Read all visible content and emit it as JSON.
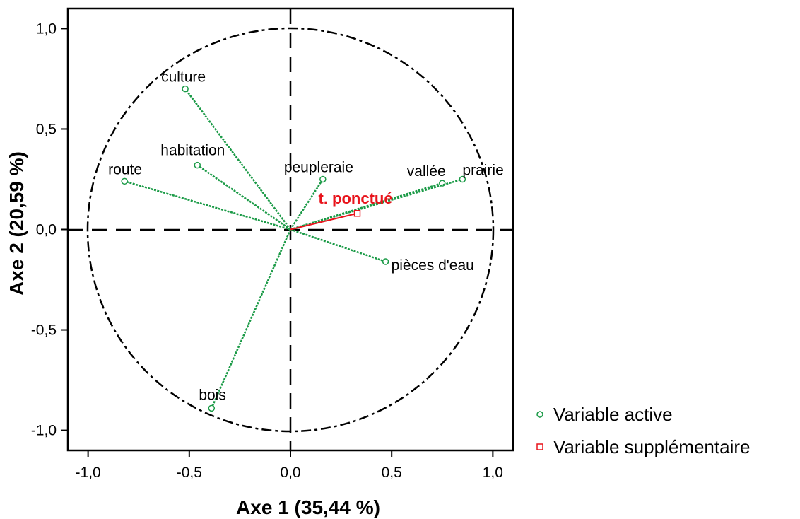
{
  "chart_data": {
    "type": "scatter",
    "subtype": "correlation circle",
    "xlabel": "Axe 1 (35,44 %)",
    "ylabel": "Axe 2 (20,59 %)",
    "xlim": [
      -1.1,
      1.1
    ],
    "ylim": [
      -1.1,
      1.1
    ],
    "x_ticks": [
      "-1,0",
      "-0,5",
      "0,0",
      "0,5",
      "1,0"
    ],
    "y_ticks": [
      "1,0",
      "0,5",
      "0,0",
      "-0,5",
      "-1,0"
    ],
    "x_tick_values": [
      -1.0,
      -0.5,
      0.0,
      0.5,
      1.0
    ],
    "y_tick_values": [
      1.0,
      0.5,
      0.0,
      -0.5,
      -1.0
    ],
    "grid": false,
    "legend_position": "right",
    "series": [
      {
        "name": "Variable active",
        "marker": "circle",
        "color": "#1a9a46",
        "points": [
          {
            "label": "culture",
            "x": -0.52,
            "y": 0.7
          },
          {
            "label": "habitation",
            "x": -0.46,
            "y": 0.32
          },
          {
            "label": "route",
            "x": -0.82,
            "y": 0.24
          },
          {
            "label": "peupleraie",
            "x": 0.16,
            "y": 0.25
          },
          {
            "label": "vallée",
            "x": 0.75,
            "y": 0.23
          },
          {
            "label": "prairie",
            "x": 0.85,
            "y": 0.25
          },
          {
            "label": "pièces d'eau",
            "x": 0.47,
            "y": -0.16
          },
          {
            "label": "bois",
            "x": -0.39,
            "y": -0.89
          }
        ]
      },
      {
        "name": "Variable supplémentaire",
        "marker": "square",
        "color": "#e8141c",
        "points": [
          {
            "label": "t. ponctué",
            "x": 0.33,
            "y": 0.08
          }
        ]
      }
    ]
  }
}
